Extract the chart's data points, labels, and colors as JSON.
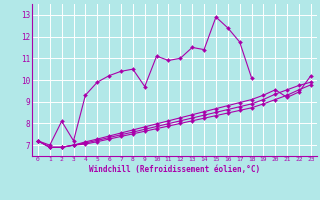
{
  "xlabel": "Windchill (Refroidissement éolien,°C)",
  "bg_color": "#b2e8e8",
  "grid_color": "#ffffff",
  "line_color": "#aa00aa",
  "xlim": [
    -0.5,
    23.5
  ],
  "ylim": [
    6.5,
    13.5
  ],
  "yticks": [
    7,
    8,
    9,
    10,
    11,
    12,
    13
  ],
  "xticks": [
    0,
    1,
    2,
    3,
    4,
    5,
    6,
    7,
    8,
    9,
    10,
    11,
    12,
    13,
    14,
    15,
    16,
    17,
    18,
    19,
    20,
    21,
    22,
    23
  ],
  "series": [
    {
      "x": [
        0,
        1,
        2,
        3,
        4,
        5,
        6,
        7,
        8,
        9,
        10,
        11,
        12,
        13,
        14,
        15,
        16,
        17,
        18
      ],
      "y": [
        7.2,
        7.0,
        8.1,
        7.2,
        9.3,
        9.9,
        10.2,
        10.4,
        10.5,
        9.7,
        11.1,
        10.9,
        11.0,
        11.5,
        11.4,
        12.9,
        12.4,
        11.75,
        10.1
      ]
    },
    {
      "x": [
        0,
        1,
        2,
        3,
        4,
        5,
        6,
        7,
        8,
        9,
        10,
        11,
        12,
        13,
        14,
        15,
        16,
        17,
        18,
        19,
        20,
        21,
        22,
        23
      ],
      "y": [
        7.2,
        6.9,
        6.9,
        7.0,
        7.15,
        7.28,
        7.42,
        7.56,
        7.7,
        7.84,
        7.98,
        8.12,
        8.26,
        8.4,
        8.54,
        8.68,
        8.82,
        8.96,
        9.1,
        9.3,
        9.55,
        9.2,
        9.45,
        10.2
      ]
    },
    {
      "x": [
        0,
        1,
        2,
        3,
        4,
        5,
        6,
        7,
        8,
        9,
        10,
        11,
        12,
        13,
        14,
        15,
        16,
        17,
        18,
        19,
        20,
        21,
        22,
        23
      ],
      "y": [
        7.2,
        6.9,
        6.9,
        7.0,
        7.1,
        7.22,
        7.35,
        7.48,
        7.6,
        7.73,
        7.86,
        7.99,
        8.12,
        8.25,
        8.38,
        8.51,
        8.64,
        8.77,
        8.9,
        9.1,
        9.35,
        9.55,
        9.75,
        9.9
      ]
    },
    {
      "x": [
        0,
        1,
        2,
        3,
        4,
        5,
        6,
        7,
        8,
        9,
        10,
        11,
        12,
        13,
        14,
        15,
        16,
        17,
        18,
        19,
        20,
        21,
        22,
        23
      ],
      "y": [
        7.2,
        6.9,
        6.9,
        7.0,
        7.05,
        7.16,
        7.28,
        7.4,
        7.52,
        7.64,
        7.76,
        7.88,
        8.0,
        8.12,
        8.24,
        8.36,
        8.48,
        8.6,
        8.72,
        8.9,
        9.1,
        9.3,
        9.55,
        9.78
      ]
    }
  ]
}
